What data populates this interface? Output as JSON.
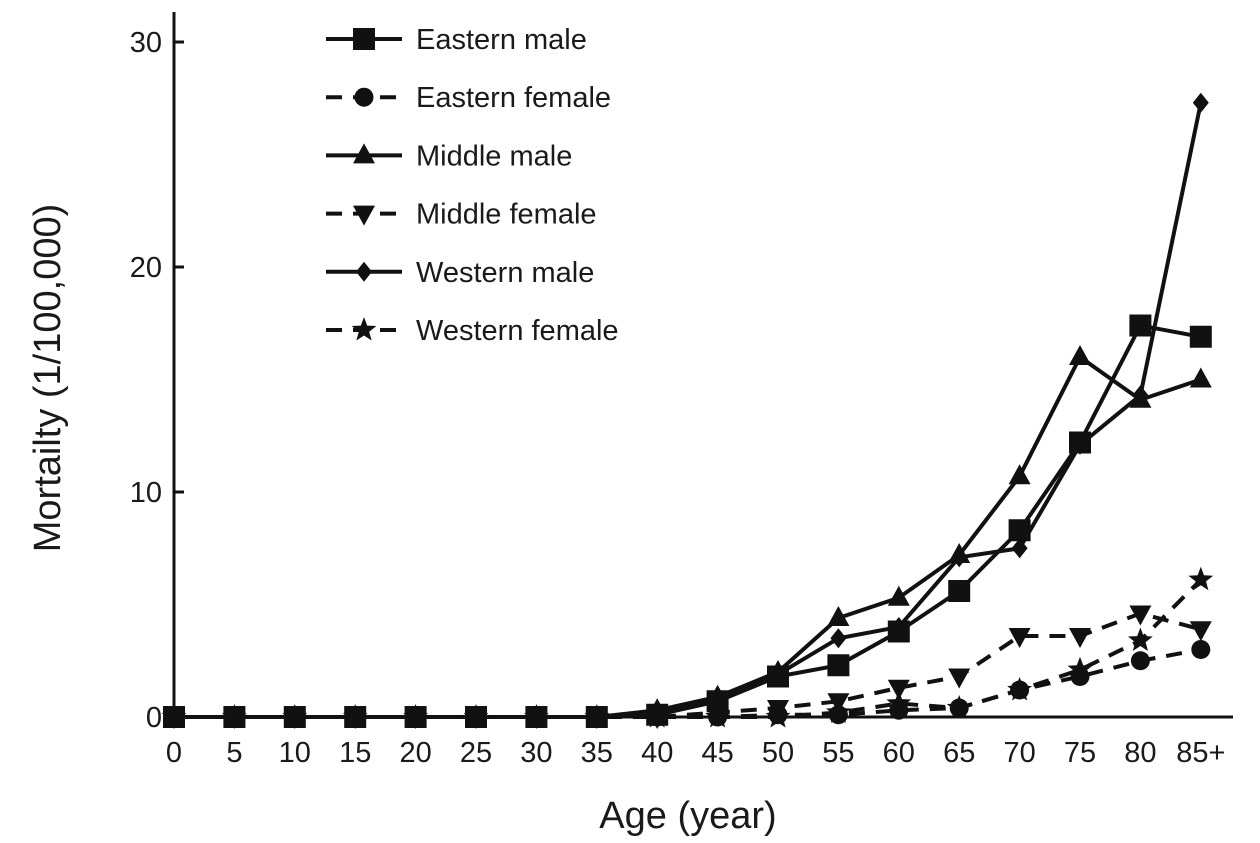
{
  "chart_data": {
    "type": "line",
    "title": "",
    "xlabel": "Age (year)",
    "ylabel": "Mortailty (1/100,000)",
    "categories": [
      "0",
      "5",
      "10",
      "15",
      "20",
      "25",
      "30",
      "35",
      "40",
      "45",
      "50",
      "55",
      "60",
      "65",
      "70",
      "75",
      "80",
      "85+"
    ],
    "ylim": [
      0,
      30
    ],
    "yticks": [
      0,
      10,
      20,
      30
    ],
    "grid": false,
    "legend_position": "top-left",
    "series": [
      {
        "name": "Eastern male",
        "marker": "square",
        "dash": "solid",
        "values": [
          0,
          0,
          0,
          0,
          0,
          0,
          0,
          0,
          0.1,
          0.7,
          1.8,
          2.3,
          3.8,
          5.6,
          8.3,
          12.2,
          17.4,
          16.9
        ]
      },
      {
        "name": "Eastern female",
        "marker": "circle",
        "dash": "dashed",
        "values": [
          0,
          0,
          0,
          0,
          0,
          0,
          0,
          0,
          0,
          0,
          0.1,
          0.1,
          0.3,
          0.4,
          1.2,
          1.8,
          2.5,
          3.0
        ]
      },
      {
        "name": "Middle male",
        "marker": "triangle",
        "dash": "solid",
        "values": [
          0,
          0,
          0,
          0,
          0,
          0,
          0,
          0,
          0.3,
          0.9,
          2.0,
          4.4,
          5.3,
          7.2,
          10.7,
          16.0,
          14.1,
          15.0
        ]
      },
      {
        "name": "Middle female",
        "marker": "triangle-down",
        "dash": "dashed",
        "values": [
          0,
          0,
          0,
          0,
          0,
          0,
          0,
          0,
          0,
          0.2,
          0.4,
          0.7,
          1.3,
          1.8,
          3.6,
          3.6,
          4.6,
          3.9
        ]
      },
      {
        "name": "Western male",
        "marker": "diamond",
        "dash": "solid",
        "values": [
          0,
          0,
          0,
          0,
          0,
          0,
          0,
          0,
          0.2,
          0.8,
          1.9,
          3.5,
          4.0,
          7.1,
          7.5,
          12.1,
          14.3,
          27.3
        ]
      },
      {
        "name": "Western female",
        "marker": "star",
        "dash": "dashed",
        "values": [
          0,
          0,
          0,
          0,
          0,
          0,
          0,
          0,
          0,
          0,
          0,
          0.2,
          0.6,
          0.4,
          1.2,
          2.1,
          3.4,
          6.1
        ]
      }
    ]
  }
}
